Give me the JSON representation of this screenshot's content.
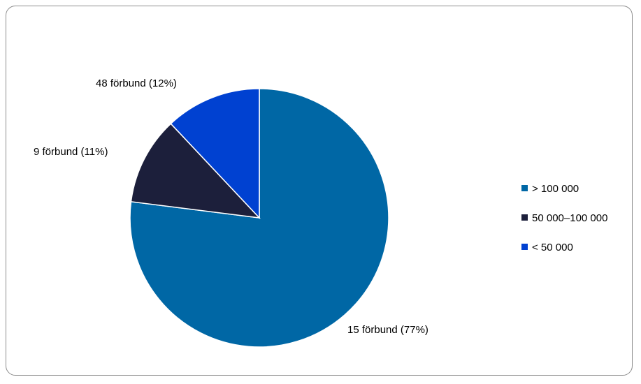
{
  "chart_data": {
    "type": "pie",
    "title": "",
    "slices": [
      {
        "name": "> 100 000",
        "label": "15 förbund (77%)",
        "value": 77,
        "color": "#0067a5"
      },
      {
        "name": "50 000–100 000",
        "label": "9 förbund (11%)",
        "value": 11,
        "color": "#1c1f3b"
      },
      {
        "name": "< 50 000",
        "label": "48 förbund (12%)",
        "value": 12,
        "color": "#0041d1"
      }
    ],
    "legend_position": "right",
    "start_angle_deg": 0,
    "direction": "clockwise"
  }
}
